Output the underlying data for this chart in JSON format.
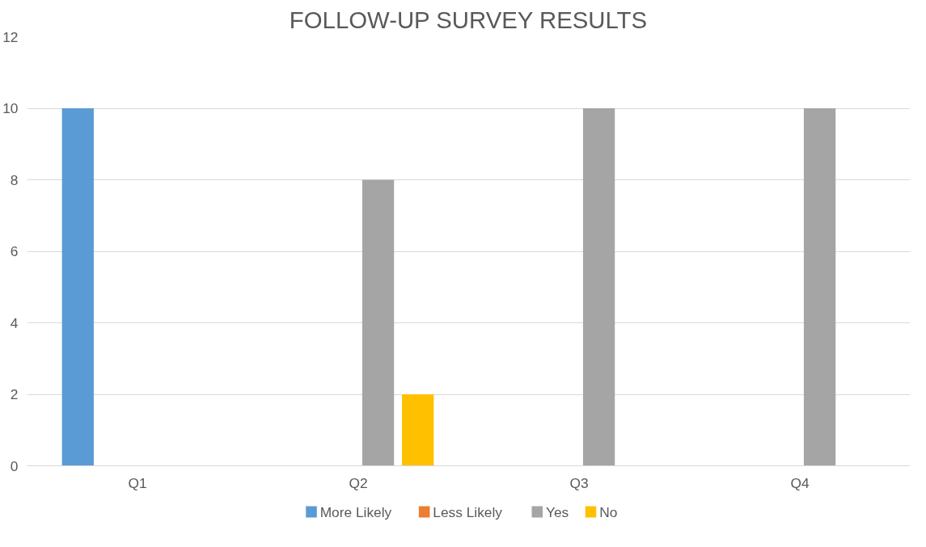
{
  "chart_data": {
    "type": "bar",
    "title": "FOLLOW-UP SURVEY RESULTS",
    "categories": [
      "Q1",
      "Q2",
      "Q3",
      "Q4"
    ],
    "series": [
      {
        "name": "More Likely",
        "color": "#5b9bd5",
        "values": [
          10,
          null,
          null,
          null
        ]
      },
      {
        "name": "Less Likely",
        "color": "#ed7d31",
        "values": [
          null,
          null,
          null,
          null
        ]
      },
      {
        "name": "Yes",
        "color": "#a5a5a5",
        "values": [
          null,
          8,
          10,
          10
        ]
      },
      {
        "name": "No",
        "color": "#ffc000",
        "values": [
          null,
          2,
          null,
          null
        ]
      }
    ],
    "ylim": [
      0,
      12
    ],
    "yticks": [
      0,
      2,
      4,
      6,
      8,
      10,
      12
    ],
    "grid": "y",
    "legend": "bottom"
  }
}
